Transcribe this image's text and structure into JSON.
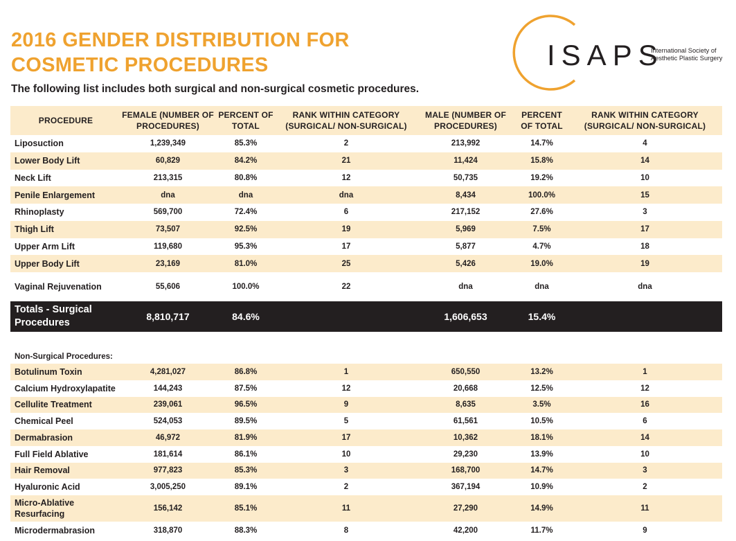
{
  "title_line1": "2016 GENDER DISTRIBUTION FOR",
  "title_line2": "COSMETIC PROCEDURES",
  "subtitle": "The following list includes both surgical and non-surgical cosmetic procedures.",
  "logo": {
    "word": "ISAPS",
    "line1": "International Society of",
    "line2": "Aesthetic Plastic Surgery"
  },
  "colors": {
    "accent": "#efa22f",
    "row_stripe": "#fcebcb",
    "totals_bg": "#231f20"
  },
  "headers": [
    "PROCEDURE",
    "FEMALE (NUMBER OF PROCEDURES)",
    "PERCENT OF TOTAL",
    "RANK WITHIN CATEGORY (SURGICAL/ NON-SURGICAL)",
    "MALE (NUMBER OF PROCEDURES)",
    "PERCENT OF TOTAL",
    "RANK WITHIN CATEGORY (SURGICAL/ NON-SURGICAL)"
  ],
  "surgical_rows": [
    [
      "Liposuction",
      "1,239,349",
      "85.3%",
      "2",
      "213,992",
      "14.7%",
      "4"
    ],
    [
      "Lower Body Lift",
      "60,829",
      "84.2%",
      "21",
      "11,424",
      "15.8%",
      "14"
    ],
    [
      "Neck Lift",
      "213,315",
      "80.8%",
      "12",
      "50,735",
      "19.2%",
      "10"
    ],
    [
      "Penile Enlargement",
      "dna",
      "dna",
      "dna",
      "8,434",
      "100.0%",
      "15"
    ],
    [
      "Rhinoplasty",
      "569,700",
      "72.4%",
      "6",
      "217,152",
      "27.6%",
      "3"
    ],
    [
      "Thigh Lift",
      "73,507",
      "92.5%",
      "19",
      "5,969",
      "7.5%",
      "17"
    ],
    [
      "Upper Arm Lift",
      "119,680",
      "95.3%",
      "17",
      "5,877",
      "4.7%",
      "18"
    ],
    [
      "Upper Body Lift",
      "23,169",
      "81.0%",
      "25",
      "5,426",
      "19.0%",
      "19"
    ],
    [
      "Vaginal Rejuvenation",
      "55,606",
      "100.0%",
      "22",
      "dna",
      "dna",
      "dna"
    ]
  ],
  "surgical_totals": [
    "Totals - Surgical Procedures",
    "8,810,717",
    "84.6%",
    "",
    "1,606,653",
    "15.4%",
    ""
  ],
  "non_surgical_label": "Non-Surgical Procedures:",
  "non_surgical_rows": [
    [
      "Botulinum Toxin",
      "4,281,027",
      "86.8%",
      "1",
      "650,550",
      "13.2%",
      "1"
    ],
    [
      "Calcium Hydroxylapatite",
      "144,243",
      "87.5%",
      "12",
      "20,668",
      "12.5%",
      "12"
    ],
    [
      "Cellulite Treatment",
      "239,061",
      "96.5%",
      "9",
      "8,635",
      "3.5%",
      "16"
    ],
    [
      "Chemical Peel",
      "524,053",
      "89.5%",
      "5",
      "61,561",
      "10.5%",
      "6"
    ],
    [
      "Dermabrasion",
      "46,972",
      "81.9%",
      "17",
      "10,362",
      "18.1%",
      "14"
    ],
    [
      "Full Field Ablative",
      "181,614",
      "86.1%",
      "10",
      "29,230",
      "13.9%",
      "10"
    ],
    [
      "Hair Removal",
      "977,823",
      "85.3%",
      "3",
      "168,700",
      "14.7%",
      "3"
    ],
    [
      "Hyaluronic Acid",
      "3,005,250",
      "89.1%",
      "2",
      "367,194",
      "10.9%",
      "2"
    ],
    [
      "Micro-Ablative Resurfacing",
      "156,142",
      "85.1%",
      "11",
      "27,290",
      "14.9%",
      "11"
    ],
    [
      "Microdermabrasion",
      "318,870",
      "88.3%",
      "8",
      "42,200",
      "11.7%",
      "9"
    ]
  ]
}
